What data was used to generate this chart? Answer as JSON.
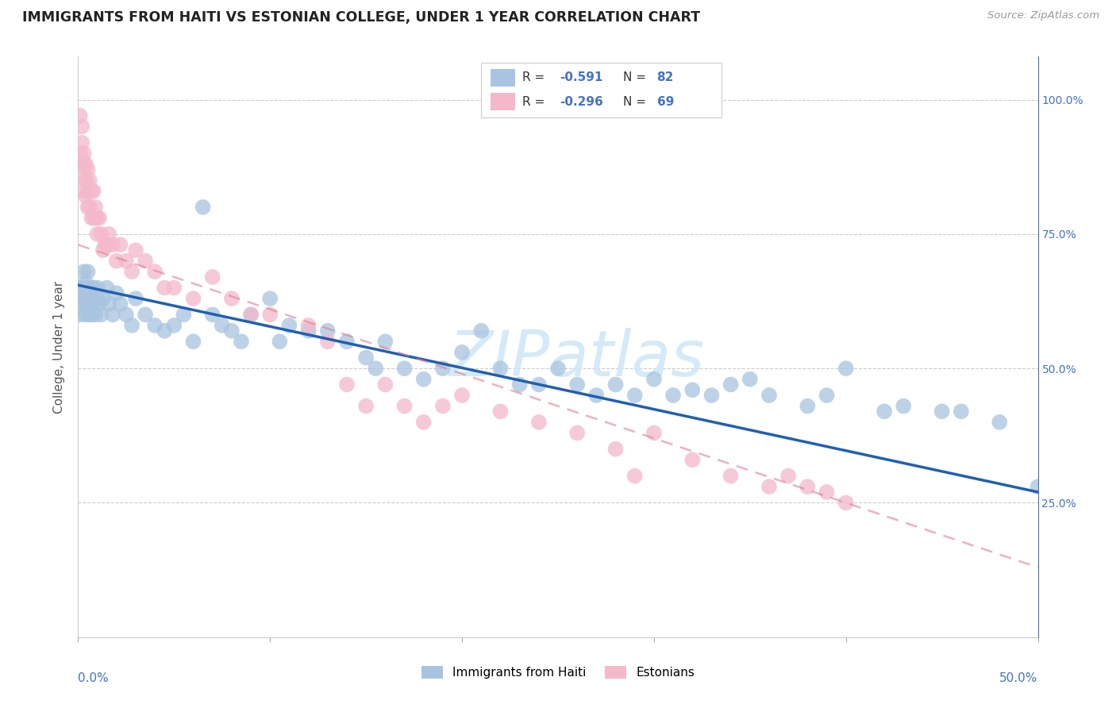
{
  "title": "IMMIGRANTS FROM HAITI VS ESTONIAN COLLEGE, UNDER 1 YEAR CORRELATION CHART",
  "source": "Source: ZipAtlas.com",
  "ylabel": "College, Under 1 year",
  "haiti_color": "#a8c4e0",
  "estonian_color": "#f4b8cb",
  "haiti_line_color": "#2060b0",
  "estonian_line_color": "#e08090",
  "watermark_color": "#d0e8f8",
  "background_color": "#ffffff",
  "xlim": [
    0.0,
    0.5
  ],
  "ylim": [
    0.0,
    1.08
  ],
  "haiti_r": "-0.591",
  "haiti_n": "82",
  "estonian_r": "-0.296",
  "estonian_n": "69",
  "haiti_scatter_x": [
    0.001,
    0.002,
    0.002,
    0.003,
    0.003,
    0.003,
    0.004,
    0.004,
    0.004,
    0.005,
    0.005,
    0.005,
    0.006,
    0.006,
    0.007,
    0.007,
    0.008,
    0.008,
    0.009,
    0.01,
    0.01,
    0.011,
    0.012,
    0.013,
    0.015,
    0.016,
    0.018,
    0.02,
    0.022,
    0.025,
    0.028,
    0.03,
    0.035,
    0.04,
    0.045,
    0.05,
    0.055,
    0.06,
    0.065,
    0.07,
    0.075,
    0.08,
    0.085,
    0.09,
    0.1,
    0.105,
    0.11,
    0.12,
    0.13,
    0.14,
    0.15,
    0.155,
    0.16,
    0.17,
    0.18,
    0.19,
    0.2,
    0.21,
    0.22,
    0.23,
    0.24,
    0.25,
    0.26,
    0.27,
    0.28,
    0.29,
    0.3,
    0.31,
    0.32,
    0.33,
    0.34,
    0.35,
    0.36,
    0.38,
    0.39,
    0.4,
    0.42,
    0.43,
    0.45,
    0.46,
    0.48,
    0.5
  ],
  "haiti_scatter_y": [
    0.6,
    0.63,
    0.65,
    0.62,
    0.65,
    0.68,
    0.6,
    0.63,
    0.66,
    0.62,
    0.65,
    0.68,
    0.6,
    0.63,
    0.6,
    0.64,
    0.62,
    0.65,
    0.6,
    0.63,
    0.65,
    0.62,
    0.6,
    0.63,
    0.65,
    0.62,
    0.6,
    0.64,
    0.62,
    0.6,
    0.58,
    0.63,
    0.6,
    0.58,
    0.57,
    0.58,
    0.6,
    0.55,
    0.8,
    0.6,
    0.58,
    0.57,
    0.55,
    0.6,
    0.63,
    0.55,
    0.58,
    0.57,
    0.57,
    0.55,
    0.52,
    0.5,
    0.55,
    0.5,
    0.48,
    0.5,
    0.53,
    0.57,
    0.5,
    0.47,
    0.47,
    0.5,
    0.47,
    0.45,
    0.47,
    0.45,
    0.48,
    0.45,
    0.46,
    0.45,
    0.47,
    0.48,
    0.45,
    0.43,
    0.45,
    0.5,
    0.42,
    0.43,
    0.42,
    0.42,
    0.4,
    0.28
  ],
  "estonian_scatter_x": [
    0.001,
    0.001,
    0.002,
    0.002,
    0.002,
    0.003,
    0.003,
    0.003,
    0.003,
    0.004,
    0.004,
    0.004,
    0.004,
    0.005,
    0.005,
    0.005,
    0.006,
    0.006,
    0.007,
    0.007,
    0.008,
    0.008,
    0.009,
    0.009,
    0.01,
    0.01,
    0.011,
    0.012,
    0.013,
    0.014,
    0.015,
    0.016,
    0.018,
    0.02,
    0.022,
    0.025,
    0.028,
    0.03,
    0.035,
    0.04,
    0.045,
    0.05,
    0.06,
    0.07,
    0.08,
    0.09,
    0.1,
    0.12,
    0.13,
    0.14,
    0.15,
    0.16,
    0.17,
    0.18,
    0.19,
    0.2,
    0.22,
    0.24,
    0.26,
    0.28,
    0.29,
    0.3,
    0.32,
    0.34,
    0.36,
    0.37,
    0.38,
    0.39,
    0.4
  ],
  "estonian_scatter_y": [
    0.97,
    0.9,
    0.92,
    0.88,
    0.95,
    0.87,
    0.9,
    0.83,
    0.88,
    0.85,
    0.88,
    0.82,
    0.85,
    0.83,
    0.8,
    0.87,
    0.8,
    0.85,
    0.78,
    0.83,
    0.78,
    0.83,
    0.78,
    0.8,
    0.78,
    0.75,
    0.78,
    0.75,
    0.72,
    0.73,
    0.73,
    0.75,
    0.73,
    0.7,
    0.73,
    0.7,
    0.68,
    0.72,
    0.7,
    0.68,
    0.65,
    0.65,
    0.63,
    0.67,
    0.63,
    0.6,
    0.6,
    0.58,
    0.55,
    0.47,
    0.43,
    0.47,
    0.43,
    0.4,
    0.43,
    0.45,
    0.42,
    0.4,
    0.38,
    0.35,
    0.3,
    0.38,
    0.33,
    0.3,
    0.28,
    0.3,
    0.28,
    0.27,
    0.25
  ]
}
